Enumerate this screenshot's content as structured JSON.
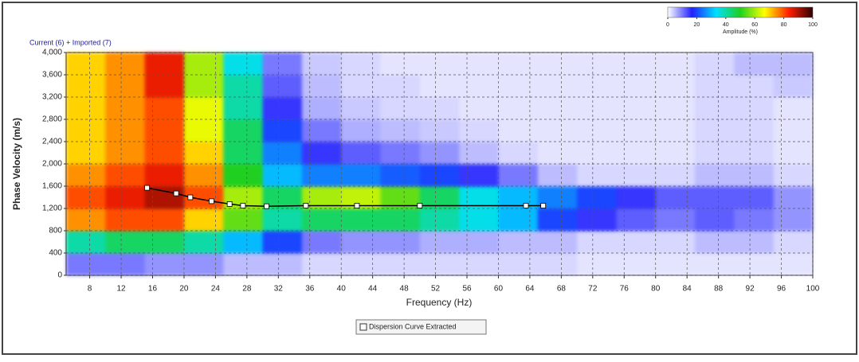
{
  "chart_data": {
    "type": "dispersion",
    "title": "Current (6) + Imported (7)",
    "x_label": "Frequency (Hz)",
    "y_label": "Phase Velocity (m/s)",
    "xlim": [
      5,
      100
    ],
    "xticks": [
      8,
      12,
      16,
      20,
      24,
      28,
      32,
      36,
      40,
      44,
      48,
      52,
      56,
      60,
      64,
      68,
      72,
      76,
      80,
      84,
      88,
      92,
      96,
      100
    ],
    "ylim": [
      0,
      4000
    ],
    "yticks": [
      0,
      400,
      800,
      {
        "value": 1200,
        "label": "1,200"
      },
      {
        "value": 1600,
        "label": "1,600"
      },
      {
        "value": 2000,
        "label": "2,000"
      },
      {
        "value": 2400,
        "label": "2,400"
      },
      {
        "value": 2800,
        "label": "2,800"
      },
      {
        "value": 3200,
        "label": "3,200"
      },
      {
        "value": 3600,
        "label": "3,600"
      },
      {
        "value": 4000,
        "label": "4,000"
      }
    ],
    "grid": true,
    "colorbar": {
      "label": "Amplitude (%)",
      "clim": [
        0,
        100
      ],
      "ticks": [
        0,
        20,
        40,
        60,
        80,
        100
      ],
      "colormap": [
        "#ffffff",
        "#2020ff",
        "#00e0ff",
        "#20d020",
        "#ffff00",
        "#ff2000",
        "#300000"
      ]
    },
    "heatmap": {
      "xbins": [
        5,
        10,
        15,
        20,
        25,
        30,
        35,
        40,
        45,
        50,
        55,
        60,
        65,
        70,
        75,
        80,
        85,
        90,
        95,
        100
      ],
      "ybins": [
        0,
        400,
        800,
        1200,
        1600,
        2000,
        2400,
        2800,
        3200,
        3600,
        4000
      ],
      "values": [
        [
          10,
          10,
          8,
          8,
          5,
          5,
          3,
          3,
          3,
          3,
          3,
          3,
          3,
          2,
          2,
          2,
          2,
          2,
          2
        ],
        [
          40,
          45,
          45,
          40,
          30,
          20,
          10,
          8,
          8,
          6,
          6,
          5,
          5,
          3,
          3,
          3,
          5,
          5,
          3
        ],
        [
          75,
          80,
          80,
          70,
          55,
          40,
          45,
          45,
          45,
          40,
          35,
          30,
          20,
          15,
          12,
          10,
          12,
          10,
          8
        ],
        [
          80,
          85,
          90,
          80,
          60,
          45,
          60,
          62,
          55,
          45,
          35,
          30,
          25,
          20,
          15,
          12,
          12,
          12,
          8
        ],
        [
          75,
          80,
          85,
          75,
          50,
          30,
          25,
          25,
          22,
          20,
          15,
          10,
          5,
          3,
          3,
          3,
          5,
          5,
          3
        ],
        [
          70,
          75,
          80,
          70,
          45,
          25,
          15,
          12,
          10,
          8,
          5,
          3,
          2,
          2,
          2,
          2,
          3,
          3,
          2
        ],
        [
          70,
          75,
          80,
          65,
          45,
          20,
          10,
          6,
          5,
          4,
          3,
          2,
          2,
          2,
          2,
          2,
          3,
          3,
          2
        ],
        [
          70,
          75,
          80,
          65,
          40,
          15,
          6,
          4,
          3,
          3,
          2,
          2,
          2,
          2,
          2,
          2,
          3,
          3,
          2
        ],
        [
          70,
          75,
          85,
          60,
          40,
          12,
          5,
          3,
          3,
          2,
          2,
          2,
          2,
          2,
          2,
          2,
          3,
          3,
          4
        ],
        [
          70,
          75,
          85,
          60,
          35,
          10,
          4,
          3,
          2,
          2,
          2,
          2,
          2,
          2,
          2,
          2,
          3,
          5,
          5
        ]
      ]
    },
    "series": [
      {
        "name": "Dispersion Curve Extracted",
        "color": "#000000",
        "x": [
          15.3,
          19,
          20.8,
          23.5,
          25.8,
          27.5,
          30.5,
          35.5,
          42,
          50,
          63.5,
          65.7
        ],
        "values": [
          1570,
          1470,
          1400,
          1330,
          1280,
          1250,
          1240,
          1250,
          1250,
          1250,
          1250,
          1250
        ]
      }
    ]
  }
}
